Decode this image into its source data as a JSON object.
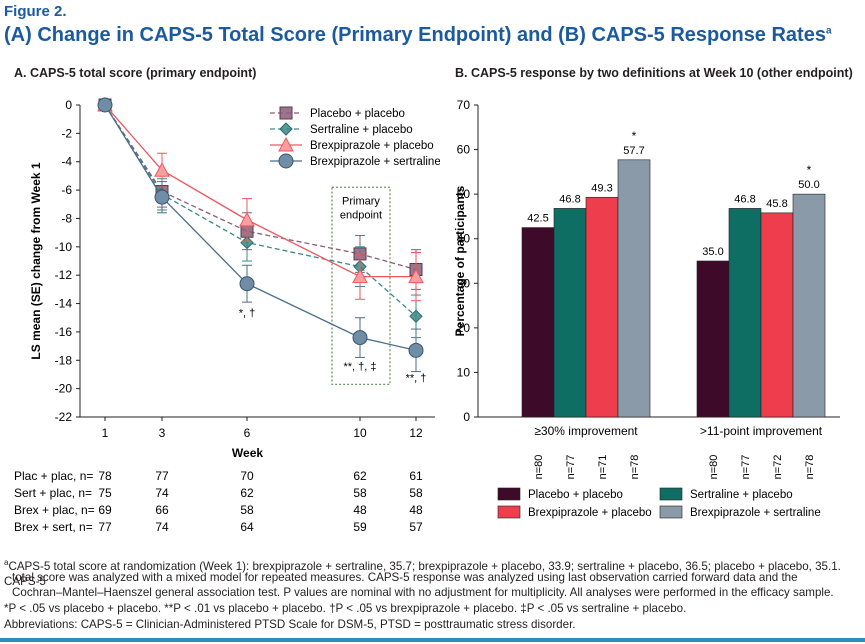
{
  "figure_label": "Figure 2.",
  "figure_title": "(A) Change in CAPS-5 Total Score (Primary Endpoint) and (B) CAPS-5 Response Rates",
  "figure_title_sup": "a",
  "chart_data": [
    {
      "type": "line",
      "title": "A. CAPS-5 total score (primary endpoint)",
      "xlabel": "Week",
      "ylabel": "LS mean (SE) change from Week 1",
      "x": [
        1,
        3,
        6,
        10,
        12
      ],
      "ylim": [
        -22,
        0
      ],
      "yticks": [
        "0",
        "-2",
        "-4",
        "-6",
        "-8",
        "-10",
        "-12",
        "-14",
        "-16",
        "-18",
        "-20",
        "-22"
      ],
      "legend_position": "top-right",
      "series": [
        {
          "name": "Placebo + placebo",
          "values": [
            0,
            -6.1,
            -8.9,
            -10.5,
            -11.6
          ],
          "se": [
            0,
            1.1,
            1.3,
            1.3,
            1.4
          ],
          "color": "#8b5c78",
          "marker": "square",
          "dash": true
        },
        {
          "name": "Sertraline + placebo",
          "values": [
            0,
            -6.3,
            -9.7,
            -11.4,
            -14.9
          ],
          "se": [
            0,
            1.1,
            1.3,
            1.4,
            1.5
          ],
          "color": "#3a8a86",
          "marker": "diamond",
          "dash": true
        },
        {
          "name": "Brexpiprazole + placebo",
          "values": [
            0,
            -4.6,
            -8.1,
            -12.1,
            -12.1
          ],
          "se": [
            0,
            1.2,
            1.5,
            1.6,
            1.7
          ],
          "color": "#f0565f",
          "marker": "triangle",
          "dash": false
        },
        {
          "name": "Brexpiprazole + sertraline",
          "values": [
            0,
            -6.5,
            -12.6,
            -16.4,
            -17.3
          ],
          "se": [
            0,
            1.1,
            1.3,
            1.4,
            1.5
          ],
          "color": "#4a6e8a",
          "marker": "circle",
          "dash": false
        }
      ],
      "annotations": [
        {
          "x": 6,
          "y": -14.9,
          "text": "*, †"
        },
        {
          "x": 10,
          "y": -18.7,
          "text": "**, †, ‡"
        },
        {
          "x": 12,
          "y": -19.5,
          "text": "**, †"
        }
      ],
      "primary_box_label": [
        "Primary",
        "endpoint"
      ],
      "n_table": [
        {
          "label": "Plac + plac, n=",
          "values": [
            "78",
            "77",
            "70",
            "62",
            "61"
          ]
        },
        {
          "label": "Sert + plac, n=",
          "values": [
            "75",
            "74",
            "62",
            "58",
            "58"
          ]
        },
        {
          "label": "Brex + plac, n=",
          "values": [
            "69",
            "66",
            "58",
            "48",
            "48"
          ]
        },
        {
          "label": "Brex + sert, n=",
          "values": [
            "77",
            "74",
            "64",
            "59",
            "57"
          ]
        }
      ]
    },
    {
      "type": "bar",
      "title": "B. CAPS-5 response by two definitions at Week 10 (other endpoint)",
      "ylabel": "Percentage of participants",
      "ylim": [
        0,
        70
      ],
      "yticks": [
        "0",
        "10",
        "20",
        "30",
        "40",
        "50",
        "60",
        "70"
      ],
      "categories": [
        "≥30% improvement",
        ">11-point improvement"
      ],
      "series": [
        {
          "name": "Placebo + placebo",
          "color": "#3d0a2a",
          "values": [
            42.5,
            35.0
          ],
          "labels": [
            "42.5",
            "35.0"
          ],
          "n": [
            "n=80",
            "n=80"
          ],
          "stars": [
            "",
            ""
          ]
        },
        {
          "name": "Sertraline + placebo",
          "color": "#0f6e63",
          "values": [
            46.8,
            46.8
          ],
          "labels": [
            "46.8",
            "46.8"
          ],
          "n": [
            "n=77",
            "n=77"
          ],
          "stars": [
            "",
            ""
          ]
        },
        {
          "name": "Brexpiprazole + placebo",
          "color": "#ee3d4c",
          "values": [
            49.3,
            45.8
          ],
          "labels": [
            "49.3",
            "45.8"
          ],
          "n": [
            "n=71",
            "n=72"
          ],
          "stars": [
            "",
            ""
          ]
        },
        {
          "name": "Brexpiprazole + sertraline",
          "color": "#8a9aa8",
          "values": [
            57.7,
            50.0
          ],
          "labels": [
            "57.7",
            "50.0"
          ],
          "n": [
            "n=78",
            "n=78"
          ],
          "stars": [
            "*",
            "*"
          ]
        }
      ],
      "legend_position": "bottom"
    }
  ],
  "footnotes": {
    "a_sup": "a",
    "a_text": "CAPS-5 total score at randomization (Week 1): brexpiprazole + sertraline, 35.7; brexpiprazole + placebo, 33.9; sertraline + placebo, 36.5; placebo + placebo, 35.1. CAPS-5",
    "a_line2": "total score was analyzed with a mixed model for repeated measures. CAPS-5 response was analyzed using last observation carried forward data and the",
    "a_line3": "Cochran–Mantel–Haenszel general association test. P values are nominal with no adjustment for multiplicity. All analyses were performed in the efficacy sample.",
    "stars_line": "*P < .05 vs placebo + placebo. **P < .01 vs placebo + placebo. †P < .05 vs brexpiprazole + placebo. ‡P < .05 vs sertraline + placebo.",
    "abbrev_line": "Abbreviations: CAPS-5 = Clinician-Administered PTSD Scale for DSM-5, PTSD = posttraumatic stress disorder."
  }
}
